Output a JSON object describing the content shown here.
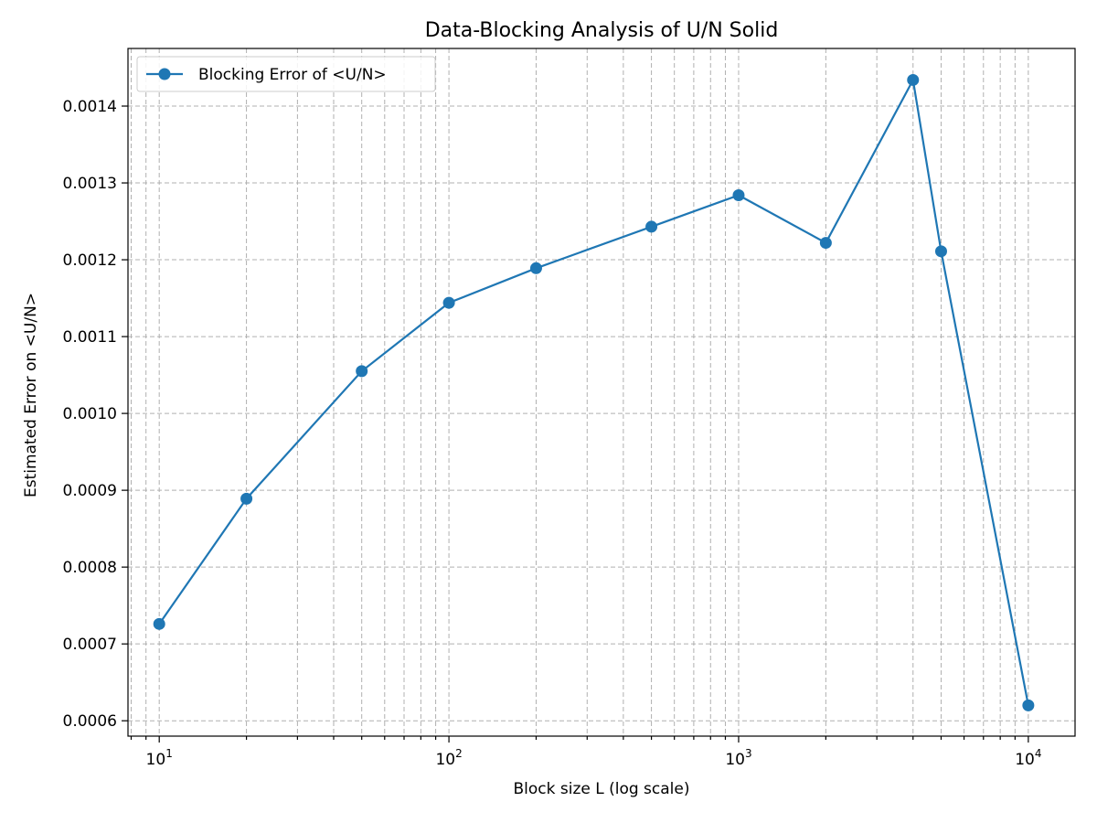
{
  "chart_data": {
    "type": "line",
    "title": "Data-Blocking Analysis of U/N Solid",
    "xlabel": "Block size L (log scale)",
    "ylabel": "Estimated Error on <U/N>",
    "xscale": "log",
    "xlim": [
      7.8,
      14500
    ],
    "ylim": [
      0.00058,
      0.001475
    ],
    "grid": true,
    "legend_position": "top-left",
    "x_major_ticks": [
      {
        "value": 10,
        "base": "10",
        "exp": "1"
      },
      {
        "value": 100,
        "base": "10",
        "exp": "2"
      },
      {
        "value": 1000,
        "base": "10",
        "exp": "3"
      },
      {
        "value": 10000,
        "base": "10",
        "exp": "4"
      }
    ],
    "y_ticks": [
      {
        "value": 0.0006,
        "label": "0.0006"
      },
      {
        "value": 0.0007,
        "label": "0.0007"
      },
      {
        "value": 0.0008,
        "label": "0.0008"
      },
      {
        "value": 0.0009,
        "label": "0.0009"
      },
      {
        "value": 0.001,
        "label": "0.0010"
      },
      {
        "value": 0.0011,
        "label": "0.0011"
      },
      {
        "value": 0.0012,
        "label": "0.0012"
      },
      {
        "value": 0.0013,
        "label": "0.0013"
      },
      {
        "value": 0.0014,
        "label": "0.0014"
      }
    ],
    "series": [
      {
        "name": "Blocking Error of <U/N>",
        "color": "#1f77b4",
        "marker": "circle",
        "x": [
          10,
          20,
          50,
          100,
          200,
          500,
          1000,
          2000,
          4000,
          5000,
          10000
        ],
        "y": [
          0.000726,
          0.000889,
          0.001055,
          0.001144,
          0.001189,
          0.001243,
          0.001284,
          0.001222,
          0.001434,
          0.001211,
          0.00062
        ]
      }
    ]
  }
}
